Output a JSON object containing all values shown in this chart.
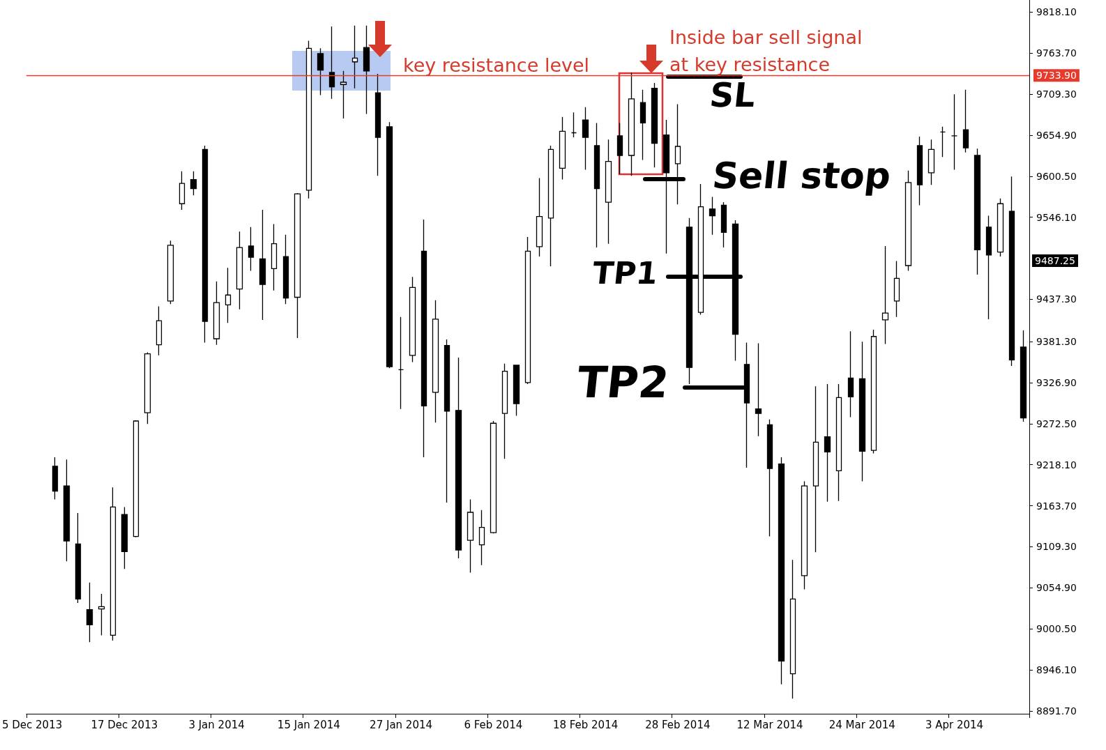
{
  "chart_data": {
    "type": "candlestick",
    "categories": [
      "5 Dec 2013",
      null,
      null,
      null,
      null,
      null,
      null,
      null,
      "17 Dec 2013",
      null,
      null,
      null,
      null,
      null,
      null,
      null,
      "3 Jan 2014",
      null,
      null,
      null,
      null,
      null,
      null,
      null,
      "15 Jan 2014",
      null,
      null,
      null,
      null,
      null,
      null,
      null,
      "27 Jan 2014",
      null,
      null,
      null,
      null,
      null,
      null,
      null,
      "6 Feb 2014",
      null,
      null,
      null,
      null,
      null,
      null,
      null,
      "18 Feb 2014",
      null,
      null,
      null,
      null,
      null,
      null,
      null,
      "28 Feb 2014",
      null,
      null,
      null,
      null,
      null,
      null,
      null,
      "12 Mar 2014",
      null,
      null,
      null,
      null,
      null,
      null,
      null,
      "24 Mar 2014",
      null,
      null,
      null,
      null,
      null,
      null,
      null,
      "3 Apr 2014",
      null,
      null,
      null,
      null,
      null,
      null
    ],
    "ohlc": [
      null,
      null,
      [
        9216,
        9228,
        9172,
        9183
      ],
      [
        9190,
        9225,
        9090,
        9117
      ],
      [
        9113,
        9154,
        9035,
        9040
      ],
      [
        9026,
        9062,
        8983,
        9006
      ],
      [
        9027,
        9047,
        8992,
        9030
      ],
      [
        8992,
        9188,
        8985,
        9162
      ],
      [
        9152,
        9162,
        9080,
        9103
      ],
      [
        9123,
        9277,
        9122,
        9276
      ],
      [
        9287,
        9367,
        9272,
        9365
      ],
      [
        9377,
        9428,
        9363,
        9409
      ],
      [
        9435,
        9515,
        9431,
        9509
      ],
      [
        9564,
        9607,
        9556,
        9591
      ],
      [
        9596,
        9607,
        9575,
        9584
      ],
      [
        9636,
        9641,
        9380,
        9408
      ],
      [
        9385,
        9461,
        9377,
        9433
      ],
      [
        9430,
        9479,
        9406,
        9443
      ],
      [
        9451,
        9527,
        9424,
        9506
      ],
      [
        9508,
        9533,
        9475,
        9493
      ],
      [
        9491,
        9556,
        9410,
        9457
      ],
      [
        9478,
        9537,
        9449,
        9511
      ],
      [
        9494,
        9523,
        9431,
        9439
      ],
      [
        9440,
        9578,
        9386,
        9577
      ],
      [
        9582,
        9780,
        9571,
        9770
      ],
      [
        9763,
        9770,
        9708,
        9741
      ],
      [
        9738,
        9799,
        9703,
        9719
      ],
      [
        9722,
        9740,
        9677,
        9725
      ],
      [
        9752,
        9800,
        9717,
        9757
      ],
      [
        9771,
        9800,
        9683,
        9740
      ],
      [
        9711,
        9736,
        9601,
        9652
      ],
      [
        9666,
        9672,
        9346,
        9348
      ],
      [
        9344,
        9414,
        9292,
        9344
      ],
      [
        9363,
        9467,
        9354,
        9453
      ],
      [
        9501,
        9543,
        9228,
        9296
      ],
      [
        9314,
        9436,
        9274,
        9411
      ],
      [
        9376,
        9384,
        9168,
        9289
      ],
      [
        9290,
        9360,
        9094,
        9105
      ],
      [
        9118,
        9172,
        9075,
        9155
      ],
      [
        9112,
        9158,
        9085,
        9135
      ],
      [
        9128,
        9276,
        9127,
        9273
      ],
      [
        9286,
        9352,
        9226,
        9342
      ],
      [
        9350,
        9350,
        9283,
        9299
      ],
      [
        9327,
        9520,
        9325,
        9501
      ],
      [
        9507,
        9598,
        9494,
        9547
      ],
      [
        9545,
        9641,
        9481,
        9636
      ],
      [
        9611,
        9679,
        9596,
        9660
      ],
      [
        9658,
        9685,
        9652,
        9658
      ],
      [
        9675,
        9692,
        9609,
        9652
      ],
      [
        9641,
        9671,
        9506,
        9584
      ],
      [
        9566,
        9649,
        9511,
        9620
      ],
      [
        9654,
        9671,
        9603,
        9628
      ],
      [
        9628,
        9738,
        9601,
        9703
      ],
      [
        9698,
        9715,
        9622,
        9671
      ],
      [
        9717,
        9724,
        9612,
        9644
      ],
      [
        9655,
        9675,
        9498,
        9605
      ],
      [
        9617,
        9696,
        9563,
        9640
      ],
      [
        9533,
        9545,
        9325,
        9347
      ],
      [
        9420,
        9590,
        9417,
        9560
      ],
      [
        9557,
        9573,
        9523,
        9548
      ],
      [
        9562,
        9566,
        9506,
        9526
      ],
      [
        9537,
        9542,
        9356,
        9391
      ],
      [
        9351,
        9380,
        9214,
        9300
      ],
      [
        9292,
        9379,
        9256,
        9286
      ],
      [
        9271,
        9278,
        9123,
        9213
      ],
      [
        9219,
        9228,
        8927,
        8958
      ],
      [
        8941,
        9092,
        8908,
        9040
      ],
      [
        9071,
        9196,
        9053,
        9190
      ],
      [
        9190,
        9322,
        9102,
        9248
      ],
      [
        9255,
        9325,
        9169,
        9235
      ],
      [
        9210,
        9325,
        9170,
        9307
      ],
      [
        9333,
        9395,
        9281,
        9308
      ],
      [
        9332,
        9381,
        9196,
        9236
      ],
      [
        9237,
        9397,
        9233,
        9388
      ],
      [
        9410,
        9508,
        9378,
        9419
      ],
      [
        9435,
        9488,
        9414,
        9465
      ],
      [
        9482,
        9608,
        9475,
        9592
      ],
      [
        9641,
        9653,
        9562,
        9589
      ],
      [
        9605,
        9649,
        9589,
        9636
      ],
      [
        9659,
        9666,
        9626,
        9659
      ],
      [
        9654,
        9709,
        9609,
        9654
      ],
      [
        9662,
        9715,
        9632,
        9638
      ],
      [
        9628,
        9637,
        9470,
        9503
      ],
      [
        9533,
        9548,
        9411,
        9496
      ],
      [
        9500,
        9571,
        9494,
        9564
      ],
      [
        9554,
        9600,
        9349,
        9357
      ],
      [
        9374,
        9396,
        9275,
        9280
      ]
    ],
    "color": "#000000",
    "ylim": [
      8888,
      9834
    ],
    "yticks": [
      {
        "value": 9818.1,
        "label": "9818.10"
      },
      {
        "value": 9763.7,
        "label": "9763.70"
      },
      {
        "value": 9709.3,
        "label": "9709.30"
      },
      {
        "value": 9654.9,
        "label": "9654.90"
      },
      {
        "value": 9600.5,
        "label": "9600.50"
      },
      {
        "value": 9546.1,
        "label": "9546.10"
      },
      {
        "value": 9437.3,
        "label": "9437.30"
      },
      {
        "value": 9381.3,
        "label": "9381.30"
      },
      {
        "value": 9326.9,
        "label": "9326.90"
      },
      {
        "value": 9272.5,
        "label": "9272.50"
      },
      {
        "value": 9218.1,
        "label": "9218.10"
      },
      {
        "value": 9163.7,
        "label": "9163.70"
      },
      {
        "value": 9109.3,
        "label": "9109.30"
      },
      {
        "value": 9054.9,
        "label": "9054.90"
      },
      {
        "value": 9000.5,
        "label": "9000.50"
      },
      {
        "value": 8946.1,
        "label": "8946.10"
      },
      {
        "value": 8891.7,
        "label": "8891.70"
      }
    ],
    "ref_lines": [
      {
        "axis": "y",
        "value": 9733.9,
        "label": "9733.90",
        "color": "#e8392b"
      }
    ],
    "annotations": [
      "key resistance level",
      "Inside bar sell signal at key resistance",
      "SL",
      "Sell stop",
      "TP1",
      "TP2",
      "9487.25"
    ],
    "grid": false
  }
}
